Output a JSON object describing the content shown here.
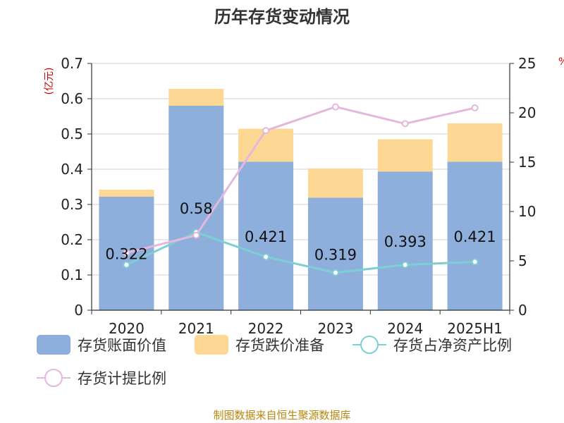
{
  "chart_data": {
    "type": "bar",
    "title": "历年存货变动情况",
    "categories": [
      "2020",
      "2021",
      "2022",
      "2023",
      "2024",
      "2025H1"
    ],
    "left_axis": {
      "unit": "(亿元)",
      "ylim": [
        0,
        0.7
      ],
      "ticks": [
        "0",
        "0.1",
        "0.2",
        "0.3",
        "0.4",
        "0.5",
        "0.6",
        "0.7"
      ]
    },
    "right_axis": {
      "ylim": [
        0,
        25
      ],
      "ticks": [
        "0",
        "5",
        "10",
        "15",
        "20",
        "25"
      ],
      "unit": "%"
    },
    "series": [
      {
        "name": "存货账面价值",
        "kind": "bar-stack",
        "axis": "left",
        "color": "#8eaedb",
        "values": [
          0.322,
          0.58,
          0.421,
          0.319,
          0.393,
          0.421
        ],
        "labels": [
          "0.322",
          "0.58",
          "0.421",
          "0.319",
          "0.393",
          "0.421"
        ]
      },
      {
        "name": "存货跌价准备",
        "kind": "bar-stack",
        "axis": "left",
        "color": "#fdd894",
        "values": [
          0.02,
          0.048,
          0.094,
          0.083,
          0.092,
          0.109
        ]
      },
      {
        "name": "存货占净资产比例",
        "kind": "line",
        "axis": "right",
        "color": "#7ccfd3",
        "values": [
          4.6,
          7.9,
          5.4,
          3.8,
          4.6,
          4.9
        ]
      },
      {
        "name": "存货计提比例",
        "kind": "line",
        "axis": "right",
        "color": "#e4b8dd",
        "values": [
          5.8,
          7.6,
          18.2,
          20.6,
          18.9,
          20.5
        ]
      }
    ],
    "grid": true,
    "legend_position": "bottom"
  },
  "footer": {
    "source": "制图数据来自恒生聚源数据库"
  }
}
